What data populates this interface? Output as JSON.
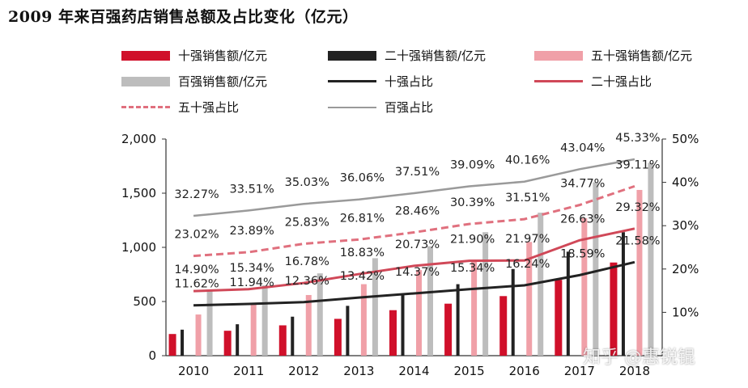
{
  "title": "2009 年来百强药店销售总额及占比变化（亿元）",
  "watermark": "知乎 @惠锐锟",
  "chart_data": {
    "type": "bar",
    "categories": [
      "2010",
      "2011",
      "2012",
      "2013",
      "2014",
      "2015",
      "2016",
      "2017",
      "2018"
    ],
    "left_axis": {
      "ticks": [
        "0",
        "500",
        "1,000",
        "1,500",
        "2,000"
      ],
      "ylim": [
        0,
        2000
      ]
    },
    "right_axis": {
      "ticks": [
        "10%",
        "20%",
        "30%",
        "40%",
        "50%"
      ],
      "ylim": [
        0,
        50
      ]
    },
    "bar_series": [
      {
        "name": "十强销售额/亿元",
        "color": "#d0102a",
        "values": [
          200,
          230,
          280,
          340,
          420,
          480,
          550,
          700,
          860
        ]
      },
      {
        "name": "二十强销售额/亿元",
        "color": "#222222",
        "values": [
          240,
          290,
          360,
          460,
          560,
          660,
          800,
          960,
          1140
        ]
      },
      {
        "name": "五十强销售额/亿元",
        "color": "#f0a0a8",
        "values": [
          380,
          470,
          560,
          660,
          790,
          870,
          1050,
          1270,
          1530
        ]
      },
      {
        "name": "百强销售额/亿元",
        "color": "#bdbdbd",
        "values": [
          600,
          650,
          760,
          900,
          1010,
          1140,
          1320,
          1600,
          1780
        ]
      }
    ],
    "line_series": [
      {
        "name": "十强占比",
        "color": "#222222",
        "style": "solid",
        "values": [
          11.62,
          11.94,
          12.36,
          13.42,
          14.37,
          15.34,
          16.24,
          18.59,
          21.58
        ],
        "labels": [
          "11.62%",
          "11.94%",
          "12.36%",
          "13.42%",
          "14.37%",
          "15.34%",
          "16.24%",
          "18.59%",
          "21.58%"
        ]
      },
      {
        "name": "二十强占比",
        "color": "#d04858",
        "style": "solid",
        "values": [
          14.9,
          15.34,
          16.78,
          18.83,
          20.73,
          21.9,
          21.97,
          26.63,
          29.32
        ],
        "labels": [
          "14.90%",
          "15.34%",
          "16.78%",
          "18.83%",
          "20.73%",
          "21.90%",
          "21.97%",
          "26.63%",
          "29.32%"
        ]
      },
      {
        "name": "五十强占比",
        "color": "#e0707e",
        "style": "dashed",
        "values": [
          23.02,
          23.89,
          25.83,
          26.81,
          28.46,
          30.39,
          31.51,
          34.77,
          39.11
        ],
        "labels": [
          "23.02%",
          "23.89%",
          "25.83%",
          "26.81%",
          "28.46%",
          "30.39%",
          "31.51%",
          "34.77%",
          "39.11%"
        ]
      },
      {
        "name": "百强占比",
        "color": "#9a9a9a",
        "style": "thin",
        "values": [
          32.27,
          33.51,
          35.03,
          36.06,
          37.51,
          39.09,
          40.16,
          43.04,
          45.33
        ],
        "labels": [
          "32.27%",
          "33.51%",
          "35.03%",
          "36.06%",
          "37.51%",
          "39.09%",
          "40.16%",
          "43.04%",
          "45.33%"
        ]
      }
    ],
    "legend_position": "top"
  }
}
